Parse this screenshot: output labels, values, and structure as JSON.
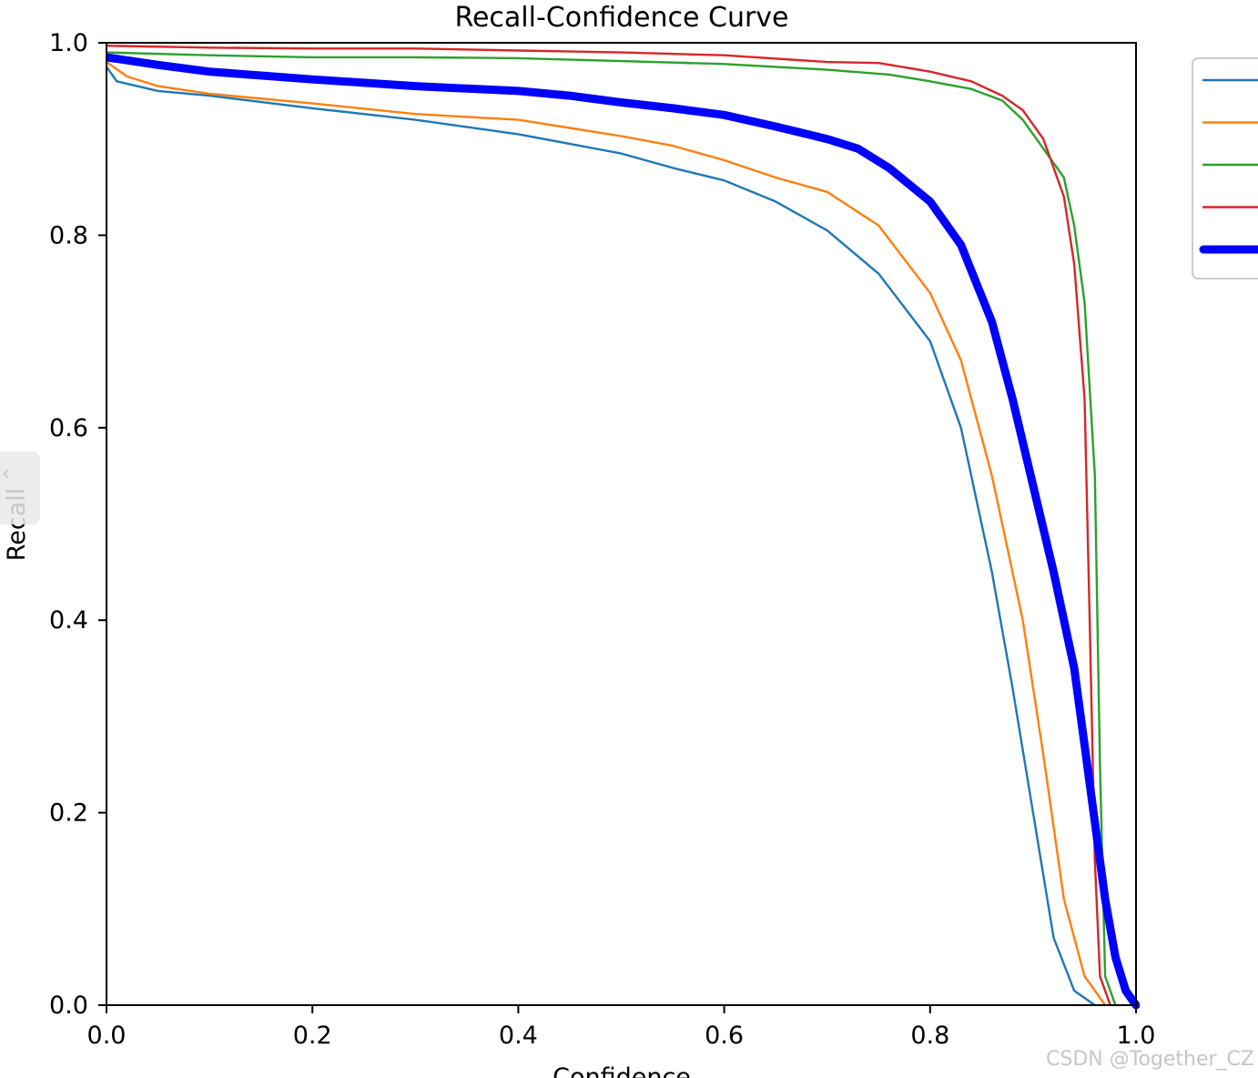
{
  "chart_data": {
    "type": "line",
    "title": "Recall-Confidence Curve",
    "xlabel": "Confidence",
    "ylabel": "Recall",
    "xlim": [
      0.0,
      1.0
    ],
    "ylim": [
      0.0,
      1.0
    ],
    "x_ticks": [
      "0.0",
      "0.2",
      "0.4",
      "0.6",
      "0.8",
      "1.0"
    ],
    "y_ticks": [
      "0.0",
      "0.2",
      "0.4",
      "0.6",
      "0.8",
      "1.0"
    ],
    "grid": false,
    "legend_position": "right, outside plot (cropped)",
    "series": [
      {
        "color": "#1f77b4",
        "points": [
          [
            0.0,
            0.975
          ],
          [
            0.01,
            0.96
          ],
          [
            0.05,
            0.95
          ],
          [
            0.1,
            0.945
          ],
          [
            0.2,
            0.932
          ],
          [
            0.3,
            0.92
          ],
          [
            0.4,
            0.905
          ],
          [
            0.5,
            0.885
          ],
          [
            0.55,
            0.87
          ],
          [
            0.6,
            0.857
          ],
          [
            0.65,
            0.835
          ],
          [
            0.7,
            0.805
          ],
          [
            0.75,
            0.76
          ],
          [
            0.8,
            0.69
          ],
          [
            0.83,
            0.6
          ],
          [
            0.86,
            0.45
          ],
          [
            0.88,
            0.33
          ],
          [
            0.9,
            0.2
          ],
          [
            0.92,
            0.07
          ],
          [
            0.94,
            0.015
          ],
          [
            0.96,
            0.0
          ]
        ]
      },
      {
        "color": "#ff7f0e",
        "points": [
          [
            0.0,
            0.98
          ],
          [
            0.02,
            0.965
          ],
          [
            0.05,
            0.955
          ],
          [
            0.1,
            0.947
          ],
          [
            0.2,
            0.937
          ],
          [
            0.3,
            0.926
          ],
          [
            0.4,
            0.92
          ],
          [
            0.5,
            0.903
          ],
          [
            0.55,
            0.893
          ],
          [
            0.6,
            0.878
          ],
          [
            0.65,
            0.86
          ],
          [
            0.7,
            0.845
          ],
          [
            0.75,
            0.81
          ],
          [
            0.8,
            0.74
          ],
          [
            0.83,
            0.67
          ],
          [
            0.86,
            0.55
          ],
          [
            0.89,
            0.4
          ],
          [
            0.91,
            0.26
          ],
          [
            0.93,
            0.11
          ],
          [
            0.95,
            0.03
          ],
          [
            0.97,
            0.0
          ]
        ]
      },
      {
        "color": "#2ca02c",
        "points": [
          [
            0.0,
            0.99
          ],
          [
            0.1,
            0.987
          ],
          [
            0.2,
            0.985
          ],
          [
            0.3,
            0.985
          ],
          [
            0.4,
            0.984
          ],
          [
            0.5,
            0.981
          ],
          [
            0.6,
            0.978
          ],
          [
            0.7,
            0.972
          ],
          [
            0.76,
            0.967
          ],
          [
            0.8,
            0.96
          ],
          [
            0.84,
            0.952
          ],
          [
            0.87,
            0.94
          ],
          [
            0.89,
            0.92
          ],
          [
            0.91,
            0.89
          ],
          [
            0.93,
            0.86
          ],
          [
            0.94,
            0.81
          ],
          [
            0.95,
            0.73
          ],
          [
            0.96,
            0.55
          ],
          [
            0.965,
            0.25
          ],
          [
            0.97,
            0.03
          ],
          [
            0.98,
            0.0
          ]
        ]
      },
      {
        "color": "#d62728",
        "points": [
          [
            0.0,
            0.997
          ],
          [
            0.1,
            0.995
          ],
          [
            0.2,
            0.994
          ],
          [
            0.3,
            0.994
          ],
          [
            0.4,
            0.992
          ],
          [
            0.5,
            0.99
          ],
          [
            0.6,
            0.987
          ],
          [
            0.7,
            0.98
          ],
          [
            0.75,
            0.979
          ],
          [
            0.8,
            0.97
          ],
          [
            0.84,
            0.96
          ],
          [
            0.87,
            0.945
          ],
          [
            0.89,
            0.93
          ],
          [
            0.91,
            0.9
          ],
          [
            0.93,
            0.84
          ],
          [
            0.94,
            0.77
          ],
          [
            0.95,
            0.63
          ],
          [
            0.955,
            0.4
          ],
          [
            0.96,
            0.15
          ],
          [
            0.965,
            0.03
          ],
          [
            0.975,
            0.0
          ]
        ]
      },
      {
        "color": "#0000ff",
        "width": "thick",
        "points": [
          [
            0.0,
            0.985
          ],
          [
            0.05,
            0.977
          ],
          [
            0.1,
            0.97
          ],
          [
            0.2,
            0.962
          ],
          [
            0.3,
            0.955
          ],
          [
            0.4,
            0.95
          ],
          [
            0.45,
            0.945
          ],
          [
            0.5,
            0.938
          ],
          [
            0.55,
            0.932
          ],
          [
            0.6,
            0.925
          ],
          [
            0.65,
            0.913
          ],
          [
            0.7,
            0.9
          ],
          [
            0.73,
            0.89
          ],
          [
            0.76,
            0.87
          ],
          [
            0.8,
            0.835
          ],
          [
            0.83,
            0.79
          ],
          [
            0.86,
            0.71
          ],
          [
            0.88,
            0.63
          ],
          [
            0.9,
            0.54
          ],
          [
            0.92,
            0.45
          ],
          [
            0.94,
            0.35
          ],
          [
            0.95,
            0.27
          ],
          [
            0.96,
            0.19
          ],
          [
            0.97,
            0.11
          ],
          [
            0.98,
            0.05
          ],
          [
            0.99,
            0.015
          ],
          [
            1.0,
            0.0
          ]
        ]
      }
    ]
  },
  "watermark": "CSDN @Together_CZ"
}
